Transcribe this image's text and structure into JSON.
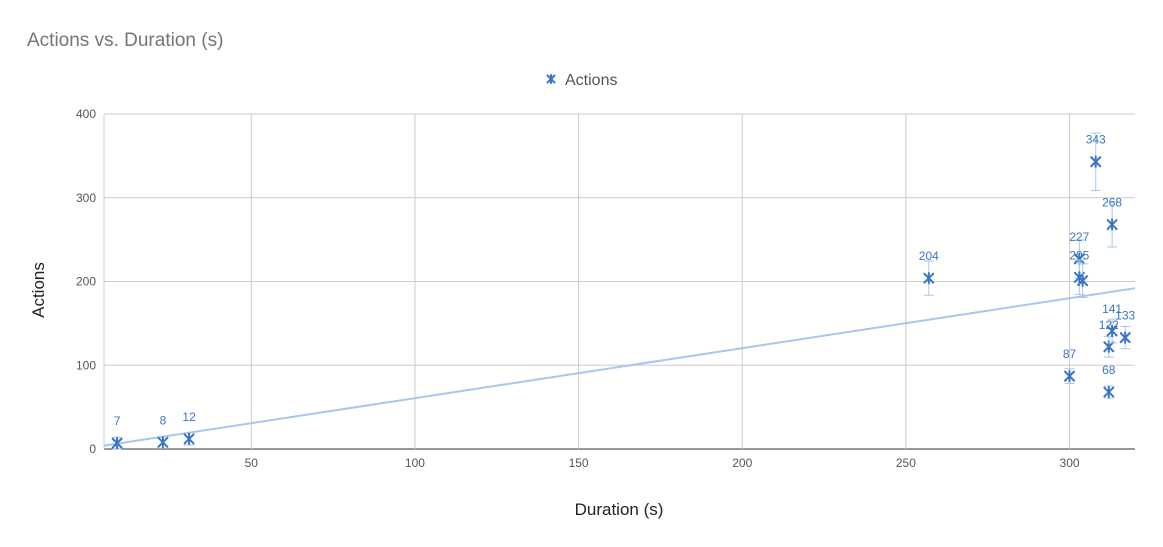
{
  "chart_data": {
    "type": "scatter",
    "title": "Actions vs. Duration (s)",
    "xlabel": "Duration (s)",
    "ylabel": "Actions",
    "xlim": [
      5,
      320
    ],
    "ylim": [
      0,
      400
    ],
    "x_ticks": [
      50,
      100,
      150,
      200,
      250,
      300
    ],
    "y_ticks": [
      0,
      100,
      200,
      300,
      400
    ],
    "grid": true,
    "legend_position": "top",
    "series": [
      {
        "name": "Actions",
        "color": "#3a75c4",
        "marker": "asterisk",
        "points": [
          {
            "x": 9,
            "y": 7,
            "label": "7"
          },
          {
            "x": 23,
            "y": 8,
            "label": "8"
          },
          {
            "x": 31,
            "y": 12,
            "label": "12"
          },
          {
            "x": 257,
            "y": 204,
            "label": "204"
          },
          {
            "x": 300,
            "y": 87,
            "label": "87"
          },
          {
            "x": 303,
            "y": 227,
            "label": "227"
          },
          {
            "x": 303,
            "y": 205,
            "label": "205"
          },
          {
            "x": 304,
            "y": 201,
            "label": ""
          },
          {
            "x": 308,
            "y": 343,
            "label": "343"
          },
          {
            "x": 312,
            "y": 122,
            "label": "122"
          },
          {
            "x": 312,
            "y": 68,
            "label": "68"
          },
          {
            "x": 313,
            "y": 141,
            "label": "141"
          },
          {
            "x": 313,
            "y": 268,
            "label": "268"
          },
          {
            "x": 317,
            "y": 133,
            "label": "133"
          }
        ]
      }
    ],
    "trendline": {
      "type": "linear",
      "start": [
        5,
        4
      ],
      "end": [
        320,
        192
      ],
      "color": "#a9c6ee"
    }
  }
}
